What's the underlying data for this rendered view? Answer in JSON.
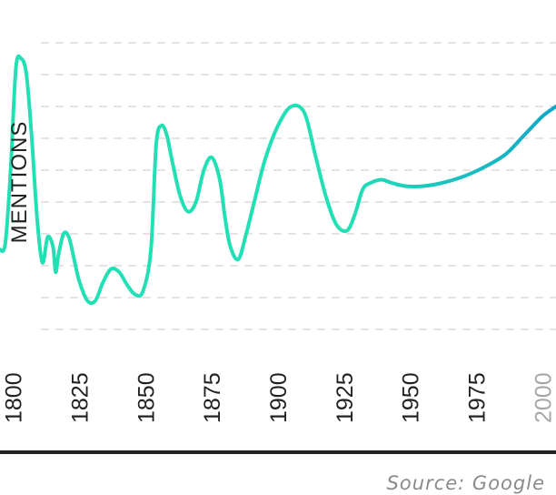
{
  "chart_data": {
    "type": "line",
    "ylabel": "MENTIONS",
    "xlabel": "",
    "title": "",
    "source": "Source: Google",
    "x_ticks": [
      "1800",
      "1825",
      "1850",
      "1875",
      "1900",
      "1925",
      "1950",
      "1975",
      "2000"
    ],
    "muted_tick": "2000",
    "xlim": [
      1795,
      2005
    ],
    "ylim": [
      0,
      9
    ],
    "grid": "horizontal dashed",
    "colors": {
      "start": "#22e0b4",
      "end": "#12a6c9",
      "axis": "#222222"
    },
    "series": [
      {
        "x": [
          1795,
          1797,
          1799,
          1801,
          1803,
          1805,
          1807,
          1809,
          1811,
          1813,
          1815,
          1816,
          1817,
          1819,
          1821,
          1823,
          1825,
          1828,
          1831,
          1834,
          1837,
          1840,
          1843,
          1846,
          1849,
          1852,
          1854,
          1856,
          1858,
          1860,
          1863,
          1866,
          1869,
          1872,
          1875,
          1878,
          1880,
          1882,
          1885,
          1888,
          1891,
          1895,
          1900,
          1905,
          1910,
          1914,
          1918,
          1922,
          1926,
          1929,
          1932,
          1935,
          1939,
          1943,
          1948,
          1955,
          1962,
          1970,
          1978,
          1986,
          1993,
          2000,
          2005
        ],
        "y": [
          2.5,
          2.7,
          5.0,
          8.2,
          8.5,
          8.0,
          6.0,
          3.5,
          2.1,
          2.9,
          2.6,
          1.8,
          2.3,
          3.0,
          2.9,
          2.2,
          1.5,
          0.9,
          0.9,
          1.5,
          1.9,
          1.8,
          1.4,
          1.1,
          1.2,
          2.5,
          5.8,
          6.4,
          6.1,
          5.3,
          4.2,
          3.7,
          4.0,
          5.0,
          5.4,
          4.7,
          3.5,
          2.6,
          2.2,
          3.0,
          4.0,
          5.3,
          6.4,
          7.0,
          6.8,
          5.5,
          4.2,
          3.3,
          3.1,
          3.6,
          4.4,
          4.6,
          4.7,
          4.6,
          4.5,
          4.5,
          4.6,
          4.8,
          5.1,
          5.5,
          6.1,
          6.7,
          7.0
        ]
      }
    ]
  }
}
